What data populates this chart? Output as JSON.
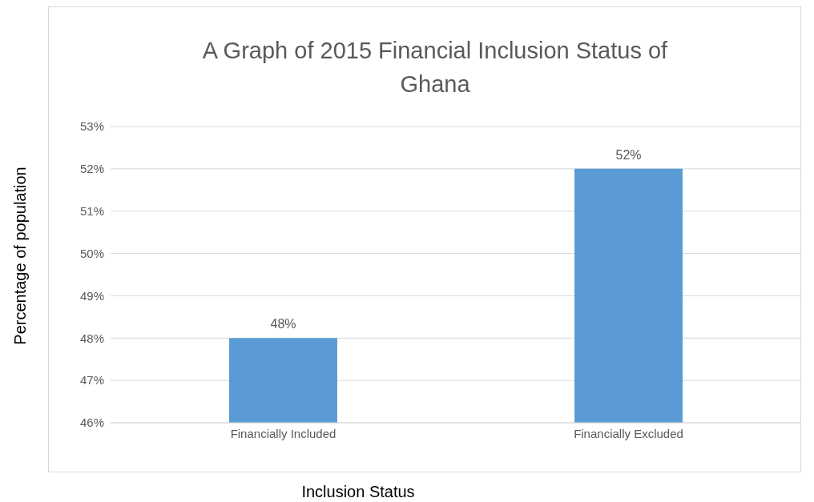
{
  "chart_data": {
    "type": "bar",
    "title": "A Graph of 2015 Financial Inclusion Status of Ghana",
    "xlabel": "Inclusion Status",
    "ylabel": "Percentage of population",
    "categories": [
      "Financially Included",
      "Financially Excluded"
    ],
    "values": [
      48,
      52
    ],
    "color": "#5b9bd5",
    "value_labels": [
      "48%",
      "52%"
    ],
    "ylim": [
      46,
      53
    ],
    "yticks": [
      {
        "value": 46,
        "label": "46%"
      },
      {
        "value": 47,
        "label": "47%"
      },
      {
        "value": 48,
        "label": "48%"
      },
      {
        "value": 49,
        "label": "49%"
      },
      {
        "value": 50,
        "label": "50%"
      },
      {
        "value": 51,
        "label": "51%"
      },
      {
        "value": 52,
        "label": "52%"
      },
      {
        "value": 53,
        "label": "53%"
      }
    ],
    "grid": "y",
    "legend": false
  }
}
